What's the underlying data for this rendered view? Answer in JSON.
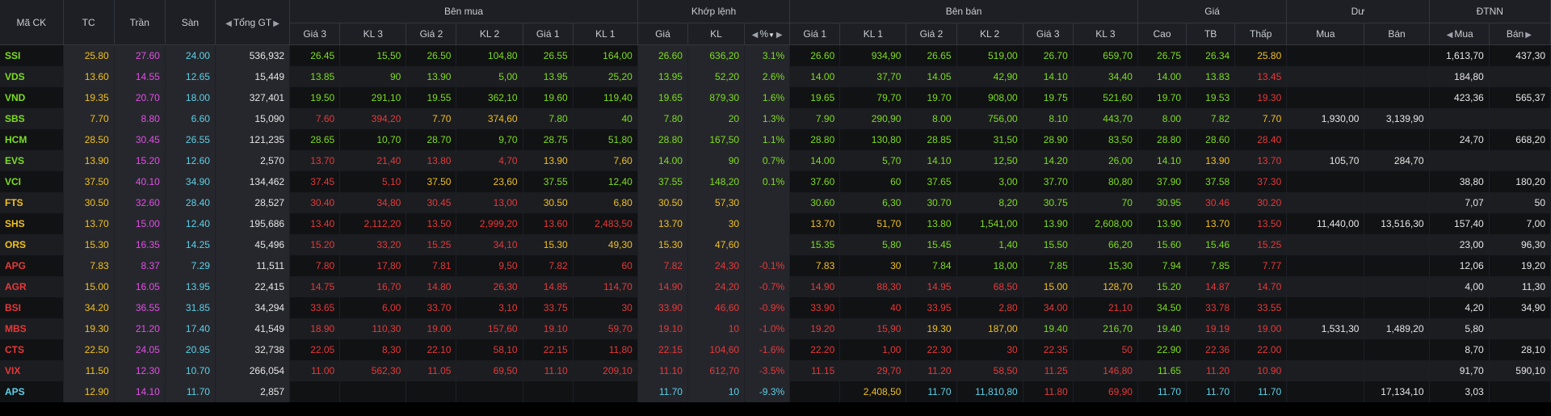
{
  "colors": {
    "up": "#7ddd1f",
    "down": "#e63939",
    "ref": "#f0c020",
    "ceil": "#e34ee6",
    "floor": "#5cd1e8",
    "white": "#e6e6e6"
  },
  "headers": {
    "symbol": "Mã CK",
    "ref": "TC",
    "ceiling": "Trần",
    "floor": "Sàn",
    "total_value": "Tổng GT",
    "buy_side": "Bên mua",
    "matched": "Khớp lệnh",
    "sell_side": "Bên bán",
    "price_group": "Giá",
    "remaining": "Dư",
    "foreign": "ĐTNN",
    "buy_cols": [
      "Giá 3",
      "KL 3",
      "Giá 2",
      "KL 2",
      "Giá 1",
      "KL 1"
    ],
    "match_cols": [
      "Giá",
      "KL",
      "%"
    ],
    "sell_cols": [
      "Giá 1",
      "KL 1",
      "Giá 2",
      "KL 2",
      "Giá 3",
      "KL 3"
    ],
    "price_cols": [
      "Cao",
      "TB",
      "Thấp"
    ],
    "remain_cols": [
      "Mua",
      "Bán"
    ],
    "foreign_cols": [
      "Mua",
      "Bán"
    ]
  },
  "rows": [
    {
      "sym": "SSI",
      "ref": "25.80",
      "ceil": "27.60",
      "floor": "24.00",
      "vol": "536,932",
      "b3p": "26.45",
      "b3v": "15,50",
      "b2p": "26.50",
      "b2v": "104,80",
      "b1p": "26.55",
      "b1v": "164,00",
      "mp": "26.60",
      "mv": "636,20",
      "mpct": "3.1%",
      "s1p": "26.60",
      "s1v": "934,90",
      "s2p": "26.65",
      "s2v": "519,00",
      "s3p": "26.70",
      "s3v": "659,70",
      "hi": "26.75",
      "avg": "26.34",
      "lo": "25.80",
      "rb": "",
      "rs": "",
      "fb": "1,613,70",
      "fs": "437,30"
    },
    {
      "sym": "VDS",
      "ref": "13.60",
      "ceil": "14.55",
      "floor": "12.65",
      "vol": "15,449",
      "b3p": "13.85",
      "b3v": "90",
      "b2p": "13.90",
      "b2v": "5,00",
      "b1p": "13.95",
      "b1v": "25,20",
      "mp": "13.95",
      "mv": "52,20",
      "mpct": "2.6%",
      "s1p": "14.00",
      "s1v": "37,70",
      "s2p": "14.05",
      "s2v": "42,90",
      "s3p": "14.10",
      "s3v": "34,40",
      "hi": "14.00",
      "avg": "13.83",
      "lo": "13.45",
      "rb": "",
      "rs": "",
      "fb": "184,80",
      "fs": ""
    },
    {
      "sym": "VND",
      "ref": "19.35",
      "ceil": "20.70",
      "floor": "18.00",
      "vol": "327,401",
      "b3p": "19.50",
      "b3v": "291,10",
      "b2p": "19.55",
      "b2v": "362,10",
      "b1p": "19.60",
      "b1v": "119,40",
      "mp": "19.65",
      "mv": "879,30",
      "mpct": "1.6%",
      "s1p": "19.65",
      "s1v": "79,70",
      "s2p": "19.70",
      "s2v": "908,00",
      "s3p": "19.75",
      "s3v": "521,60",
      "hi": "19.70",
      "avg": "19.53",
      "lo": "19.30",
      "rb": "",
      "rs": "",
      "fb": "423,36",
      "fs": "565,37"
    },
    {
      "sym": "SBS",
      "ref": "7.70",
      "ceil": "8.80",
      "floor": "6.60",
      "vol": "15,090",
      "b3p": "7.60",
      "b3v": "394,20",
      "b2p": "7.70",
      "b2v": "374,60",
      "b1p": "7.80",
      "b1v": "40",
      "mp": "7.80",
      "mv": "20",
      "mpct": "1.3%",
      "s1p": "7.90",
      "s1v": "290,90",
      "s2p": "8.00",
      "s2v": "756,00",
      "s3p": "8.10",
      "s3v": "443,70",
      "hi": "8.00",
      "avg": "7.82",
      "lo": "7.70",
      "rb": "1,930,00",
      "rs": "3,139,90",
      "fb": "",
      "fs": ""
    },
    {
      "sym": "HCM",
      "ref": "28.50",
      "ceil": "30.45",
      "floor": "26.55",
      "vol": "121,235",
      "b3p": "28.65",
      "b3v": "10,70",
      "b2p": "28.70",
      "b2v": "9,70",
      "b1p": "28.75",
      "b1v": "51,80",
      "mp": "28.80",
      "mv": "167,50",
      "mpct": "1.1%",
      "s1p": "28.80",
      "s1v": "130,80",
      "s2p": "28.85",
      "s2v": "31,50",
      "s3p": "28.90",
      "s3v": "83,50",
      "hi": "28.80",
      "avg": "28.60",
      "lo": "28.40",
      "rb": "",
      "rs": "",
      "fb": "24,70",
      "fs": "668,20"
    },
    {
      "sym": "EVS",
      "ref": "13.90",
      "ceil": "15.20",
      "floor": "12.60",
      "vol": "2,570",
      "b3p": "13.70",
      "b3v": "21,40",
      "b2p": "13.80",
      "b2v": "4,70",
      "b1p": "13.90",
      "b1v": "7,60",
      "mp": "14.00",
      "mv": "90",
      "mpct": "0.7%",
      "s1p": "14.00",
      "s1v": "5,70",
      "s2p": "14.10",
      "s2v": "12,50",
      "s3p": "14.20",
      "s3v": "26,00",
      "hi": "14.10",
      "avg": "13.90",
      "lo": "13.70",
      "rb": "105,70",
      "rs": "284,70",
      "fb": "",
      "fs": ""
    },
    {
      "sym": "VCI",
      "ref": "37.50",
      "ceil": "40.10",
      "floor": "34.90",
      "vol": "134,462",
      "b3p": "37.45",
      "b3v": "5,10",
      "b2p": "37.50",
      "b2v": "23,60",
      "b1p": "37.55",
      "b1v": "12,40",
      "mp": "37.55",
      "mv": "148,20",
      "mpct": "0.1%",
      "s1p": "37.60",
      "s1v": "60",
      "s2p": "37.65",
      "s2v": "3,00",
      "s3p": "37.70",
      "s3v": "80,80",
      "hi": "37.90",
      "avg": "37.58",
      "lo": "37.30",
      "rb": "",
      "rs": "",
      "fb": "38,80",
      "fs": "180,20"
    },
    {
      "sym": "FTS",
      "ref": "30.50",
      "ceil": "32.60",
      "floor": "28.40",
      "vol": "28,527",
      "b3p": "30.40",
      "b3v": "34,80",
      "b2p": "30.45",
      "b2v": "13,00",
      "b1p": "30.50",
      "b1v": "6,80",
      "mp": "30.50",
      "mv": "57,30",
      "mpct": "",
      "s1p": "30.60",
      "s1v": "6,30",
      "s2p": "30.70",
      "s2v": "8,20",
      "s3p": "30.75",
      "s3v": "70",
      "hi": "30.95",
      "avg": "30.46",
      "lo": "30.20",
      "rb": "",
      "rs": "",
      "fb": "7,07",
      "fs": "50"
    },
    {
      "sym": "SHS",
      "ref": "13.70",
      "ceil": "15.00",
      "floor": "12.40",
      "vol": "195,686",
      "b3p": "13.40",
      "b3v": "2,112,20",
      "b2p": "13.50",
      "b2v": "2,999,20",
      "b1p": "13.60",
      "b1v": "2,483,50",
      "mp": "13.70",
      "mv": "30",
      "mpct": "",
      "s1p": "13.70",
      "s1v": "51,70",
      "s2p": "13.80",
      "s2v": "1,541,00",
      "s3p": "13.90",
      "s3v": "2,608,00",
      "hi": "13.90",
      "avg": "13.70",
      "lo": "13.50",
      "rb": "11,440,00",
      "rs": "13,516,30",
      "fb": "157,40",
      "fs": "7,00"
    },
    {
      "sym": "ORS",
      "ref": "15.30",
      "ceil": "16.35",
      "floor": "14.25",
      "vol": "45,496",
      "b3p": "15.20",
      "b3v": "33,20",
      "b2p": "15.25",
      "b2v": "34,10",
      "b1p": "15.30",
      "b1v": "49,30",
      "mp": "15.30",
      "mv": "47,60",
      "mpct": "",
      "s1p": "15.35",
      "s1v": "5,80",
      "s2p": "15.45",
      "s2v": "1,40",
      "s3p": "15.50",
      "s3v": "66,20",
      "hi": "15.60",
      "avg": "15.46",
      "lo": "15.25",
      "rb": "",
      "rs": "",
      "fb": "23,00",
      "fs": "96,30"
    },
    {
      "sym": "APG",
      "ref": "7.83",
      "ceil": "8.37",
      "floor": "7.29",
      "vol": "11,511",
      "b3p": "7.80",
      "b3v": "17,80",
      "b2p": "7.81",
      "b2v": "9,50",
      "b1p": "7.82",
      "b1v": "60",
      "mp": "7.82",
      "mv": "24,30",
      "mpct": "-0.1%",
      "s1p": "7.83",
      "s1v": "30",
      "s2p": "7.84",
      "s2v": "18,00",
      "s3p": "7.85",
      "s3v": "15,30",
      "hi": "7.94",
      "avg": "7.85",
      "lo": "7.77",
      "rb": "",
      "rs": "",
      "fb": "12,06",
      "fs": "19,20"
    },
    {
      "sym": "AGR",
      "ref": "15.00",
      "ceil": "16.05",
      "floor": "13.95",
      "vol": "22,415",
      "b3p": "14.75",
      "b3v": "16,70",
      "b2p": "14.80",
      "b2v": "26,30",
      "b1p": "14.85",
      "b1v": "114,70",
      "mp": "14.90",
      "mv": "24,20",
      "mpct": "-0.7%",
      "s1p": "14.90",
      "s1v": "88,30",
      "s2p": "14.95",
      "s2v": "68,50",
      "s3p": "15.00",
      "s3v": "128,70",
      "hi": "15.20",
      "avg": "14.87",
      "lo": "14.70",
      "rb": "",
      "rs": "",
      "fb": "4,00",
      "fs": "11,30"
    },
    {
      "sym": "BSI",
      "ref": "34.20",
      "ceil": "36.55",
      "floor": "31.85",
      "vol": "34,294",
      "b3p": "33.65",
      "b3v": "6,00",
      "b2p": "33.70",
      "b2v": "3,10",
      "b1p": "33.75",
      "b1v": "30",
      "mp": "33.90",
      "mv": "46,60",
      "mpct": "-0.9%",
      "s1p": "33.90",
      "s1v": "40",
      "s2p": "33.95",
      "s2v": "2,80",
      "s3p": "34.00",
      "s3v": "21,10",
      "hi": "34.50",
      "avg": "33.78",
      "lo": "33.55",
      "rb": "",
      "rs": "",
      "fb": "4,20",
      "fs": "34,90"
    },
    {
      "sym": "MBS",
      "ref": "19.30",
      "ceil": "21.20",
      "floor": "17.40",
      "vol": "41,549",
      "b3p": "18.90",
      "b3v": "110,30",
      "b2p": "19.00",
      "b2v": "157,60",
      "b1p": "19.10",
      "b1v": "59,70",
      "mp": "19.10",
      "mv": "10",
      "mpct": "-1.0%",
      "s1p": "19.20",
      "s1v": "15,90",
      "s2p": "19.30",
      "s2v": "187,00",
      "s3p": "19.40",
      "s3v": "216,70",
      "hi": "19.40",
      "avg": "19.19",
      "lo": "19.00",
      "rb": "1,531,30",
      "rs": "1,489,20",
      "fb": "5,80",
      "fs": ""
    },
    {
      "sym": "CTS",
      "ref": "22.50",
      "ceil": "24.05",
      "floor": "20.95",
      "vol": "32,738",
      "b3p": "22.05",
      "b3v": "8,30",
      "b2p": "22.10",
      "b2v": "58,10",
      "b1p": "22.15",
      "b1v": "11,80",
      "mp": "22.15",
      "mv": "104,60",
      "mpct": "-1.6%",
      "s1p": "22.20",
      "s1v": "1,00",
      "s2p": "22.30",
      "s2v": "30",
      "s3p": "22.35",
      "s3v": "50",
      "hi": "22.90",
      "avg": "22.36",
      "lo": "22.00",
      "rb": "",
      "rs": "",
      "fb": "8,70",
      "fs": "28,10"
    },
    {
      "sym": "VIX",
      "ref": "11.50",
      "ceil": "12.30",
      "floor": "10.70",
      "vol": "266,054",
      "b3p": "11.00",
      "b3v": "562,30",
      "b2p": "11.05",
      "b2v": "69,50",
      "b1p": "11.10",
      "b1v": "209,10",
      "mp": "11.10",
      "mv": "612,70",
      "mpct": "-3.5%",
      "s1p": "11.15",
      "s1v": "29,70",
      "s2p": "11.20",
      "s2v": "58,50",
      "s3p": "11.25",
      "s3v": "146,80",
      "hi": "11.65",
      "avg": "11.20",
      "lo": "10.90",
      "rb": "",
      "rs": "",
      "fb": "91,70",
      "fs": "590,10"
    },
    {
      "sym": "APS",
      "ref": "12.90",
      "ceil": "14.10",
      "floor": "11.70",
      "vol": "2,857",
      "b3p": "",
      "b3v": "",
      "b2p": "",
      "b2v": "",
      "b1p": "",
      "b1v": "",
      "mp": "11.70",
      "mv": "10",
      "mpct": "-9.3%",
      "s1p": "",
      "s1v": "2,408,50",
      "s2p": "11.70",
      "s2v": "11,810,80",
      "s3p": "11.80",
      "s3v": "69,90",
      "hi": "11.70",
      "avg": "11.70",
      "lo": "11.70",
      "rb": "",
      "rs": "17,134,10",
      "fb": "3,03",
      "fs": ""
    }
  ]
}
